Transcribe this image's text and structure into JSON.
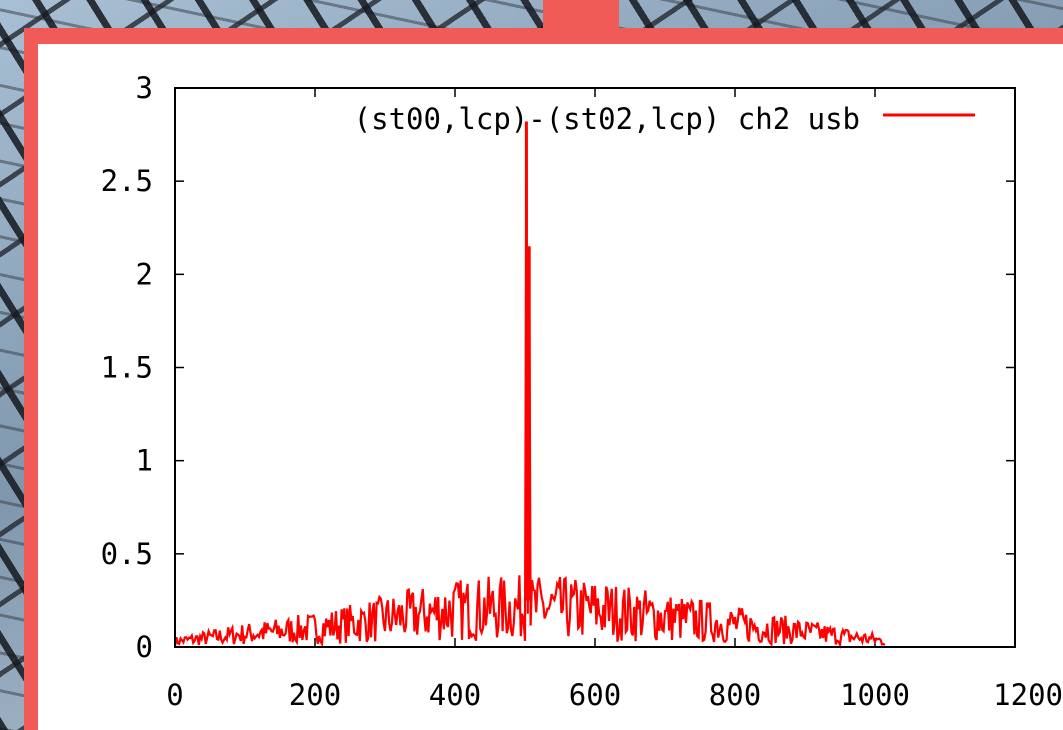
{
  "chart_data": {
    "type": "line",
    "title": "",
    "xlabel": "",
    "ylabel": "",
    "xlim": [
      0,
      1200
    ],
    "ylim": [
      0,
      3
    ],
    "x_ticks": [
      "0",
      "200",
      "400",
      "600",
      "800",
      "1000",
      "1200"
    ],
    "y_ticks": [
      "0",
      "0.5",
      "1",
      "1.5",
      "2",
      "2.5",
      "3"
    ],
    "grid": false,
    "legend_position": "top-right",
    "series": [
      {
        "name": "(st00,lcp)-(st02,lcp) ch2 usb",
        "color": "#ff0000",
        "envelope_x": [
          0,
          100,
          200,
          300,
          400,
          500,
          600,
          700,
          800,
          900,
          1000,
          1015
        ],
        "envelope_y": [
          0.03,
          0.07,
          0.1,
          0.15,
          0.2,
          0.21,
          0.2,
          0.16,
          0.12,
          0.08,
          0.04,
          0.03
        ],
        "spikes": [
          {
            "x": 502,
            "y": 2.82
          },
          {
            "x": 506,
            "y": 2.15
          }
        ],
        "x_max": 1015
      }
    ]
  },
  "colors": {
    "frame": "#f05a57",
    "series": "#ff0000"
  }
}
